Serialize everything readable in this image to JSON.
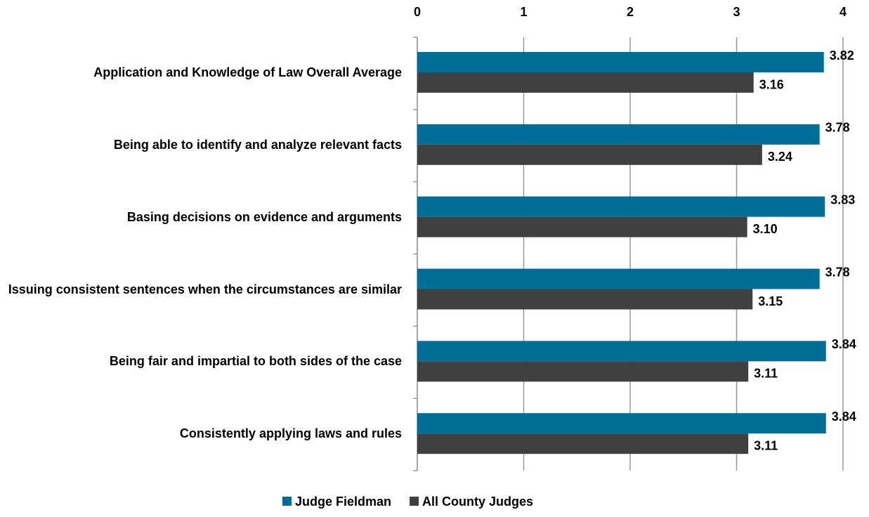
{
  "chart_data": {
    "type": "hbar",
    "categories": [
      "Application and Knowledge of Law Overall Average",
      "Being able to identify and analyze relevant facts",
      "Basing decisions on evidence and arguments",
      "Issuing consistent sentences when the circumstances are similar",
      "Being fair and impartial to both sides of the case",
      "Consistently applying laws and rules"
    ],
    "series": [
      {
        "name": "Judge Fieldman",
        "color": "#006e96",
        "values": [
          3.82,
          3.78,
          3.83,
          3.78,
          3.84,
          3.84
        ],
        "value_labels": [
          "3.82",
          "3.78",
          "3.83",
          "3.78",
          "3.84",
          "3.84"
        ]
      },
      {
        "name": "All County Judges",
        "color": "#404040",
        "values": [
          3.16,
          3.24,
          3.1,
          3.15,
          3.11,
          3.11
        ],
        "value_labels": [
          "3.16",
          "3.24",
          "3.10",
          "3.15",
          "3.11",
          "3.11"
        ]
      }
    ],
    "xlim": [
      0,
      4
    ],
    "xticks": [
      0,
      1,
      2,
      3,
      4
    ],
    "grid": true,
    "legend": "bottom"
  }
}
